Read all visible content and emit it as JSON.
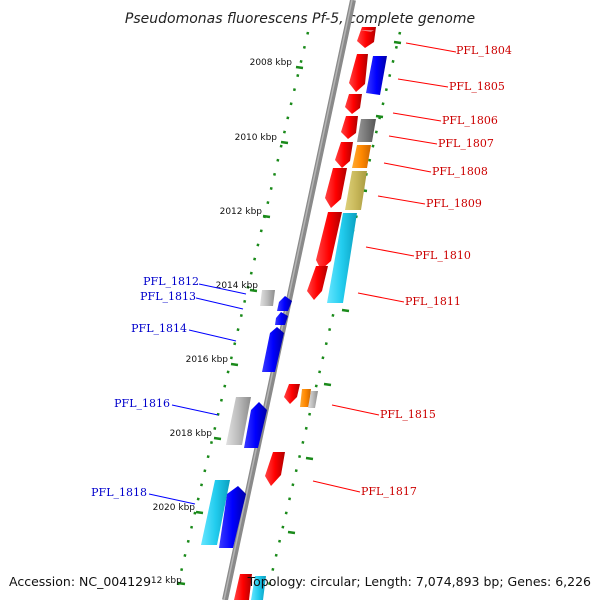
{
  "title": "Pseudomonas fluorescens Pf-5, complete genome",
  "footer": {
    "accession": "Accession: NC_004129",
    "kbp_partial": "·12 kbp",
    "topology": "Topology: circular; Length: 7,074,893 bp; Genes: 6,226"
  },
  "colors": {
    "red": "#ff0000",
    "blue": "#0000ff",
    "gray": "#777777",
    "orange": "#ff8800",
    "khaki": "#c8b85a",
    "cyan": "#22ccee",
    "silver": "#bbbbbb",
    "axis": "#888888",
    "dots": "#1a8a1a"
  },
  "kbp_ticks": [
    "2008 kbp",
    "2010 kbp",
    "2012 kbp",
    "2014 kbp",
    "2016 kbp",
    "2018 kbp",
    "2020 kbp"
  ],
  "right_genes": [
    "PFL_1804",
    "PFL_1805",
    "PFL_1806",
    "PFL_1807",
    "PFL_1808",
    "PFL_1809",
    "PFL_1810",
    "PFL_1811",
    "PFL_1815",
    "PFL_1817"
  ],
  "left_genes": [
    "PFL_1812",
    "PFL_1813",
    "PFL_1814",
    "PFL_1816",
    "PFL_1818"
  ]
}
